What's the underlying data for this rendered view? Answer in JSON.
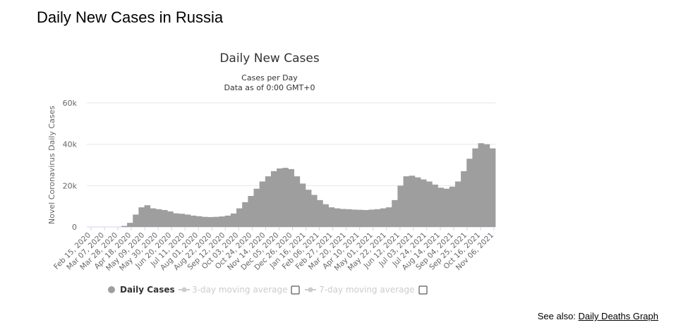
{
  "page": {
    "title": "Daily New Cases in Russia",
    "see_also_label": "See also:",
    "see_also_link": "Daily Deaths Graph"
  },
  "legend": {
    "daily": "Daily Cases",
    "ma3": "3-day moving average",
    "ma7": "7-day moving average"
  },
  "colors": {
    "bars": "#9e9e9e",
    "bars_stroke": "#8a8a8a",
    "grid": "#e6e6e6",
    "axis_text": "#666666",
    "legend_inactive": "#cccccc"
  },
  "chart_data": {
    "type": "bar",
    "title": "Daily New Cases",
    "subtitle": "Cases per Day",
    "subtitle2": "Data as of 0:00 GMT+0",
    "xlabel": "",
    "ylabel": "Novel Coronavirus Daily Cases",
    "ylim": [
      0,
      60000
    ],
    "yticks": [
      0,
      20000,
      40000,
      60000
    ],
    "ytick_labels": [
      "0",
      "20k",
      "40k",
      "60k"
    ],
    "xticks": [
      "Feb 15, 2020",
      "Mar 07, 2020",
      "Mar 28, 2020",
      "Apr 18, 2020",
      "May 09, 2020",
      "May 30, 2020",
      "Jun 20, 2020",
      "Jul 11, 2020",
      "Aug 01, 2020",
      "Aug 22, 2020",
      "Sep 12, 2020",
      "Oct 03, 2020",
      "Oct 24, 2020",
      "Nov 14, 2020",
      "Dec 05, 2020",
      "Dec 26, 2020",
      "Jan 16, 2021",
      "Feb 06, 2021",
      "Feb 27, 2021",
      "Mar 20, 2021",
      "Apr 10, 2021",
      "May 01, 2021",
      "May 22, 2021",
      "Jun 12, 2021",
      "Jul 03, 2021",
      "Jul 24, 2021",
      "Aug 14, 2021",
      "Sep 04, 2021",
      "Sep 25, 2021",
      "Oct 16, 2021",
      "Nov 06, 2021"
    ],
    "grid": true,
    "legend_position": "bottom",
    "series": [
      {
        "name": "Daily Cases",
        "x_start": "Feb 15, 2020",
        "x_step_days": 7,
        "values": [
          0,
          0,
          0,
          0,
          0,
          0,
          500,
          2000,
          6000,
          9500,
          10500,
          9000,
          8600,
          8200,
          7500,
          6600,
          6400,
          6000,
          5500,
          5200,
          4900,
          4800,
          4900,
          5100,
          5500,
          6500,
          9000,
          12000,
          15000,
          18500,
          22000,
          24500,
          27000,
          28300,
          28600,
          28000,
          24500,
          21000,
          18000,
          15500,
          13000,
          11000,
          9500,
          9000,
          8700,
          8600,
          8400,
          8300,
          8200,
          8400,
          8600,
          9000,
          9500,
          13000,
          20000,
          24500,
          24800,
          24000,
          23000,
          22000,
          20500,
          19000,
          18500,
          19500,
          22000,
          27000,
          33000,
          38000,
          40500,
          40000,
          38000
        ]
      }
    ]
  }
}
